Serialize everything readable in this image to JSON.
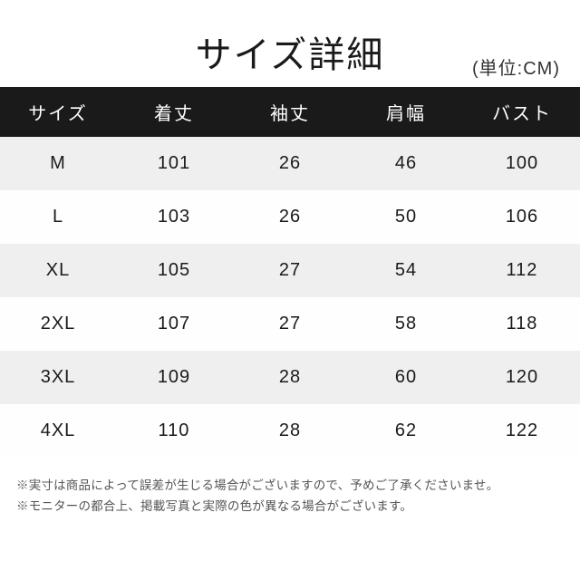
{
  "title": "サイズ詳細",
  "unit": "(単位:CM)",
  "table": {
    "columns": [
      "サイズ",
      "着丈",
      "袖丈",
      "肩幅",
      "バスト"
    ],
    "rows": [
      [
        "M",
        "101",
        "26",
        "46",
        "100"
      ],
      [
        "L",
        "103",
        "26",
        "50",
        "106"
      ],
      [
        "XL",
        "105",
        "27",
        "54",
        "112"
      ],
      [
        "2XL",
        "107",
        "27",
        "58",
        "118"
      ],
      [
        "3XL",
        "109",
        "28",
        "60",
        "120"
      ],
      [
        "4XL",
        "110",
        "28",
        "62",
        "122"
      ]
    ],
    "header_bg": "#1a1a1a",
    "header_fg": "#ffffff",
    "row_even_bg": "#efefef",
    "row_odd_bg": "#fefefe",
    "font_size_header": 20,
    "font_size_cell": 20
  },
  "notes": [
    "※実寸は商品によって誤差が生じる場合がございますので、予めご了承くださいませ。",
    "※モニターの都合上、掲載写真と実際の色が異なる場合がございます。"
  ],
  "colors": {
    "text": "#1a1a1a",
    "note_text": "#555555",
    "background": "#ffffff"
  }
}
